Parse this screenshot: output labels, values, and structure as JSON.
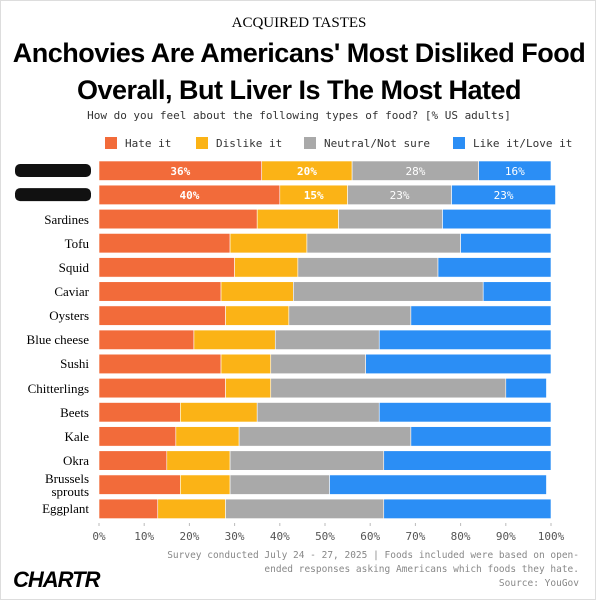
{
  "chart_data": {
    "type": "stacked_bar_horizontal",
    "kicker": "ACQUIRED TASTES",
    "title": "Anchovies Are Americans' Most Disliked Food Overall, But Liver Is The Most Hated",
    "subtitle": "How do you feel about the following types of food? [% US adults]",
    "categories": [
      null,
      null,
      "Sardines",
      "Tofu",
      "Squid",
      "Caviar",
      "Oysters",
      "Blue cheese",
      "Sushi",
      "Chitterlings",
      "Beets",
      "Kale",
      "Okra",
      "Brussels sprouts",
      "Eggplant"
    ],
    "series": [
      {
        "name": "Hate it",
        "color": "#f26b3a",
        "values": [
          36,
          40,
          35,
          29,
          30,
          27,
          28,
          21,
          27,
          28,
          18,
          17,
          15,
          18,
          13
        ],
        "value_labels": [
          "36%",
          "40%",
          null,
          null,
          null,
          null,
          null,
          null,
          null,
          null,
          null,
          null,
          null,
          null,
          null
        ]
      },
      {
        "name": "Dislike it",
        "color": "#fbb316",
        "values": [
          20,
          15,
          18,
          17,
          14,
          16,
          14,
          18,
          11,
          10,
          17,
          14,
          14,
          11,
          15
        ],
        "value_labels": [
          "20%",
          "15%",
          null,
          null,
          null,
          null,
          null,
          null,
          null,
          null,
          null,
          null,
          null,
          null,
          null
        ]
      },
      {
        "name": "Neutral/Not sure",
        "color": "#a9a9a9",
        "values": [
          28,
          23,
          23,
          34,
          31,
          42,
          27,
          23,
          21,
          52,
          27,
          38,
          34,
          22,
          35
        ],
        "value_labels": [
          "28%",
          "23%",
          null,
          null,
          null,
          null,
          null,
          null,
          null,
          null,
          null,
          null,
          null,
          null,
          null
        ]
      },
      {
        "name": "Like it/Love it",
        "color": "#2b8ef5",
        "values": [
          16,
          23,
          24,
          20,
          25,
          15,
          31,
          38,
          41,
          9,
          38,
          31,
          37,
          48,
          37
        ],
        "value_labels": [
          "16%",
          "23%",
          null,
          null,
          null,
          null,
          null,
          null,
          null,
          null,
          null,
          null,
          null,
          null,
          null
        ]
      }
    ],
    "xlim": [
      0,
      100
    ],
    "xticks": [
      {
        "value": 0,
        "label": "0%"
      },
      {
        "value": 10,
        "label": "10%"
      },
      {
        "value": 20,
        "label": "20%"
      },
      {
        "value": 30,
        "label": "30%"
      },
      {
        "value": 40,
        "label": "40%"
      },
      {
        "value": 50,
        "label": "50%"
      },
      {
        "value": 60,
        "label": "60%"
      },
      {
        "value": 70,
        "label": "70%"
      },
      {
        "value": 80,
        "label": "80%"
      },
      {
        "value": 90,
        "label": "90%"
      },
      {
        "value": 100,
        "label": "100%"
      }
    ],
    "note": "Survey conducted July 24 - 27, 2025 | Foods included were based on open-ended responses asking Americans which foods they hate.",
    "source": "Source: YouGov",
    "logo": "CHARTR"
  }
}
